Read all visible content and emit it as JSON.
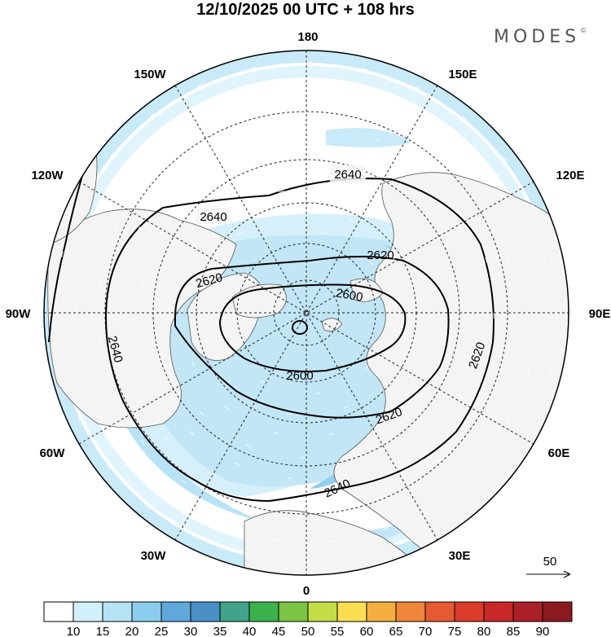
{
  "title": "12/10/2025  00 UTC  + 108 hrs",
  "brand": "MODES",
  "brand_mark": "©",
  "meridian_labels": [
    {
      "text": "180",
      "lon": 180
    },
    {
      "text": "150E",
      "lon": 150
    },
    {
      "text": "120E",
      "lon": 120
    },
    {
      "text": "90E",
      "lon": 90
    },
    {
      "text": "60E",
      "lon": 60
    },
    {
      "text": "30E",
      "lon": 30
    },
    {
      "text": "0",
      "lon": 0
    },
    {
      "text": "30W",
      "lon": -30
    },
    {
      "text": "60W",
      "lon": -60
    },
    {
      "text": "90W",
      "lon": -90
    },
    {
      "text": "120W",
      "lon": -120
    },
    {
      "text": "150W",
      "lon": -150
    }
  ],
  "contour_labels": [
    "2640",
    "2640",
    "2640",
    "2640",
    "2620",
    "2620",
    "2620",
    "2620",
    "2600",
    "2600"
  ],
  "vector_reference": "50",
  "colorbar": {
    "ticks": [
      "10",
      "15",
      "20",
      "25",
      "30",
      "35",
      "40",
      "45",
      "50",
      "55",
      "60",
      "65",
      "70",
      "75",
      "80",
      "85",
      "90"
    ],
    "colors": [
      "#ffffff",
      "#d2f0fb",
      "#b3e3f5",
      "#8ccdee",
      "#5fa8dc",
      "#4a8fc6",
      "#3fa48a",
      "#3cb14c",
      "#7cc444",
      "#c4dc46",
      "#fadd50",
      "#f6ae41",
      "#f0863a",
      "#e55a32",
      "#dc3c2c",
      "#c82828",
      "#ab2026",
      "#8b1a1e"
    ]
  },
  "colors": {
    "land": "#f4f4f4",
    "ocean_bg": "#ffffff",
    "coast": "#555555",
    "contour": "#000000"
  }
}
